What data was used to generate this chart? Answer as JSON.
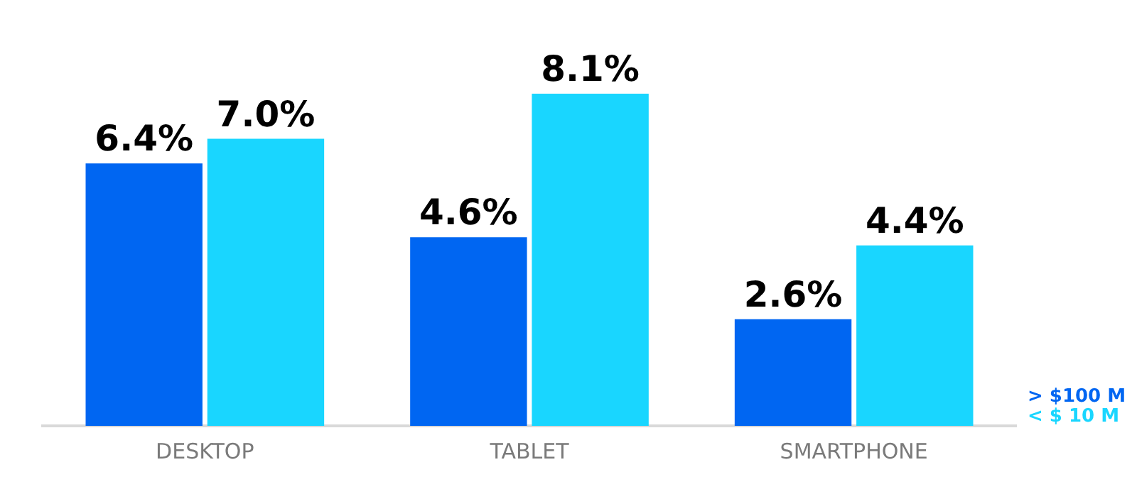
{
  "chart_data": {
    "type": "bar",
    "categories": [
      "DESKTOP",
      "TABLET",
      "SMARTPHONE"
    ],
    "series": [
      {
        "name": "> $100 M",
        "color": "#0066f2",
        "values": [
          6.4,
          4.6,
          2.6
        ],
        "value_labels": [
          "6.4%",
          "4.6%",
          "2.6%"
        ]
      },
      {
        "name": "< $ 10 M",
        "color": "#19d6ff",
        "values": [
          7.0,
          8.1,
          4.4
        ],
        "value_labels": [
          "7.0%",
          "8.1%",
          "4.4%"
        ]
      }
    ],
    "data_labels": true,
    "legend": "bottom right",
    "grid": false
  }
}
